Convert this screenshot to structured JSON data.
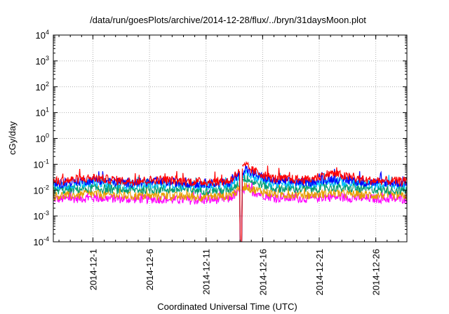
{
  "chart_data": {
    "type": "line",
    "title": "/data/run/goesPlots/archive/2014-12-28/flux/../bryn/31daysMoon.plot",
    "xlabel": "Coordinated Universal Time (UTC)",
    "ylabel": "cGy/day",
    "y_scale": "log",
    "ylim": [
      0.0001,
      10000
    ],
    "xlim": [
      "2014-11-27T12:00",
      "2014-12-28T18:00"
    ],
    "y_ticks": [
      {
        "value": 0.0001,
        "base": "10",
        "exp": "-4"
      },
      {
        "value": 0.001,
        "base": "10",
        "exp": "-3"
      },
      {
        "value": 0.01,
        "base": "10",
        "exp": "-2"
      },
      {
        "value": 0.1,
        "base": "10",
        "exp": "-1"
      },
      {
        "value": 1,
        "base": "10",
        "exp": "0"
      },
      {
        "value": 10,
        "base": "10",
        "exp": "1"
      },
      {
        "value": 100,
        "base": "10",
        "exp": "2"
      },
      {
        "value": 1000,
        "base": "10",
        "exp": "3"
      },
      {
        "value": 10000,
        "base": "10",
        "exp": "4"
      }
    ],
    "x_ticks": [
      {
        "date": "2014-12-01",
        "label": "2014-12-1"
      },
      {
        "date": "2014-12-06",
        "label": "2014-12-6"
      },
      {
        "date": "2014-12-11",
        "label": "2014-12-11"
      },
      {
        "date": "2014-12-16",
        "label": "2014-12-16"
      },
      {
        "date": "2014-12-21",
        "label": "2014-12-21"
      },
      {
        "date": "2014-12-26",
        "label": "2014-12-26"
      }
    ],
    "grid": true,
    "legend": "none",
    "data_gap": {
      "start": "2014-12-13T23:00",
      "end": "2014-12-14T05:00"
    },
    "series": [
      {
        "color": "#ff0000",
        "x": [
          "2014-11-28",
          "2014-12-01",
          "2014-12-04",
          "2014-12-07",
          "2014-12-10",
          "2014-12-13",
          "2014-12-14T12:00",
          "2014-12-15",
          "2014-12-17",
          "2014-12-20",
          "2014-12-22",
          "2014-12-25",
          "2014-12-28"
        ],
        "y": [
          0.022,
          0.03,
          0.022,
          0.025,
          0.021,
          0.022,
          0.09,
          0.06,
          0.028,
          0.025,
          0.045,
          0.024,
          0.022
        ]
      },
      {
        "color": "#0000ff",
        "x": [
          "2014-11-28",
          "2014-12-01",
          "2014-12-04",
          "2014-12-07",
          "2014-12-10",
          "2014-12-13",
          "2014-12-14T12:00",
          "2014-12-15",
          "2014-12-17",
          "2014-12-20",
          "2014-12-22",
          "2014-12-25",
          "2014-12-28"
        ],
        "y": [
          0.018,
          0.025,
          0.019,
          0.021,
          0.018,
          0.019,
          0.07,
          0.045,
          0.022,
          0.02,
          0.028,
          0.02,
          0.019
        ]
      },
      {
        "color": "#00c0ff",
        "x": [
          "2014-11-28",
          "2014-12-01",
          "2014-12-04",
          "2014-12-07",
          "2014-12-10",
          "2014-12-13",
          "2014-12-14T12:00",
          "2014-12-15",
          "2014-12-17",
          "2014-12-20",
          "2014-12-22",
          "2014-12-25",
          "2014-12-28"
        ],
        "y": [
          0.015,
          0.02,
          0.016,
          0.017,
          0.015,
          0.016,
          0.05,
          0.035,
          0.018,
          0.017,
          0.022,
          0.017,
          0.016
        ]
      },
      {
        "color": "#009e73",
        "x": [
          "2014-11-28",
          "2014-12-01",
          "2014-12-04",
          "2014-12-07",
          "2014-12-10",
          "2014-12-13",
          "2014-12-14T12:00",
          "2014-12-15",
          "2014-12-17",
          "2014-12-20",
          "2014-12-22",
          "2014-12-25",
          "2014-12-28"
        ],
        "y": [
          0.01,
          0.012,
          0.01,
          0.011,
          0.01,
          0.01,
          0.03,
          0.022,
          0.012,
          0.011,
          0.013,
          0.011,
          0.01
        ]
      },
      {
        "color": "#e69f00",
        "x": [
          "2014-11-28",
          "2014-12-01",
          "2014-12-04",
          "2014-12-07",
          "2014-12-10",
          "2014-12-13",
          "2014-12-14T12:00",
          "2014-12-15",
          "2014-12-17",
          "2014-12-20",
          "2014-12-22",
          "2014-12-25",
          "2014-12-28"
        ],
        "y": [
          0.006,
          0.007,
          0.006,
          0.006,
          0.0055,
          0.006,
          0.015,
          0.011,
          0.007,
          0.0065,
          0.0075,
          0.0065,
          0.006
        ]
      },
      {
        "color": "#ff00ff",
        "x": [
          "2014-11-28",
          "2014-12-01",
          "2014-12-04",
          "2014-12-07",
          "2014-12-10",
          "2014-12-13",
          "2014-12-14T12:00",
          "2014-12-15",
          "2014-12-17",
          "2014-12-20",
          "2014-12-22",
          "2014-12-25",
          "2014-12-28"
        ],
        "y": [
          0.0045,
          0.005,
          0.0045,
          0.0045,
          0.004,
          0.0045,
          0.012,
          0.009,
          0.005,
          0.0048,
          0.0055,
          0.0048,
          0.0045
        ]
      }
    ]
  }
}
